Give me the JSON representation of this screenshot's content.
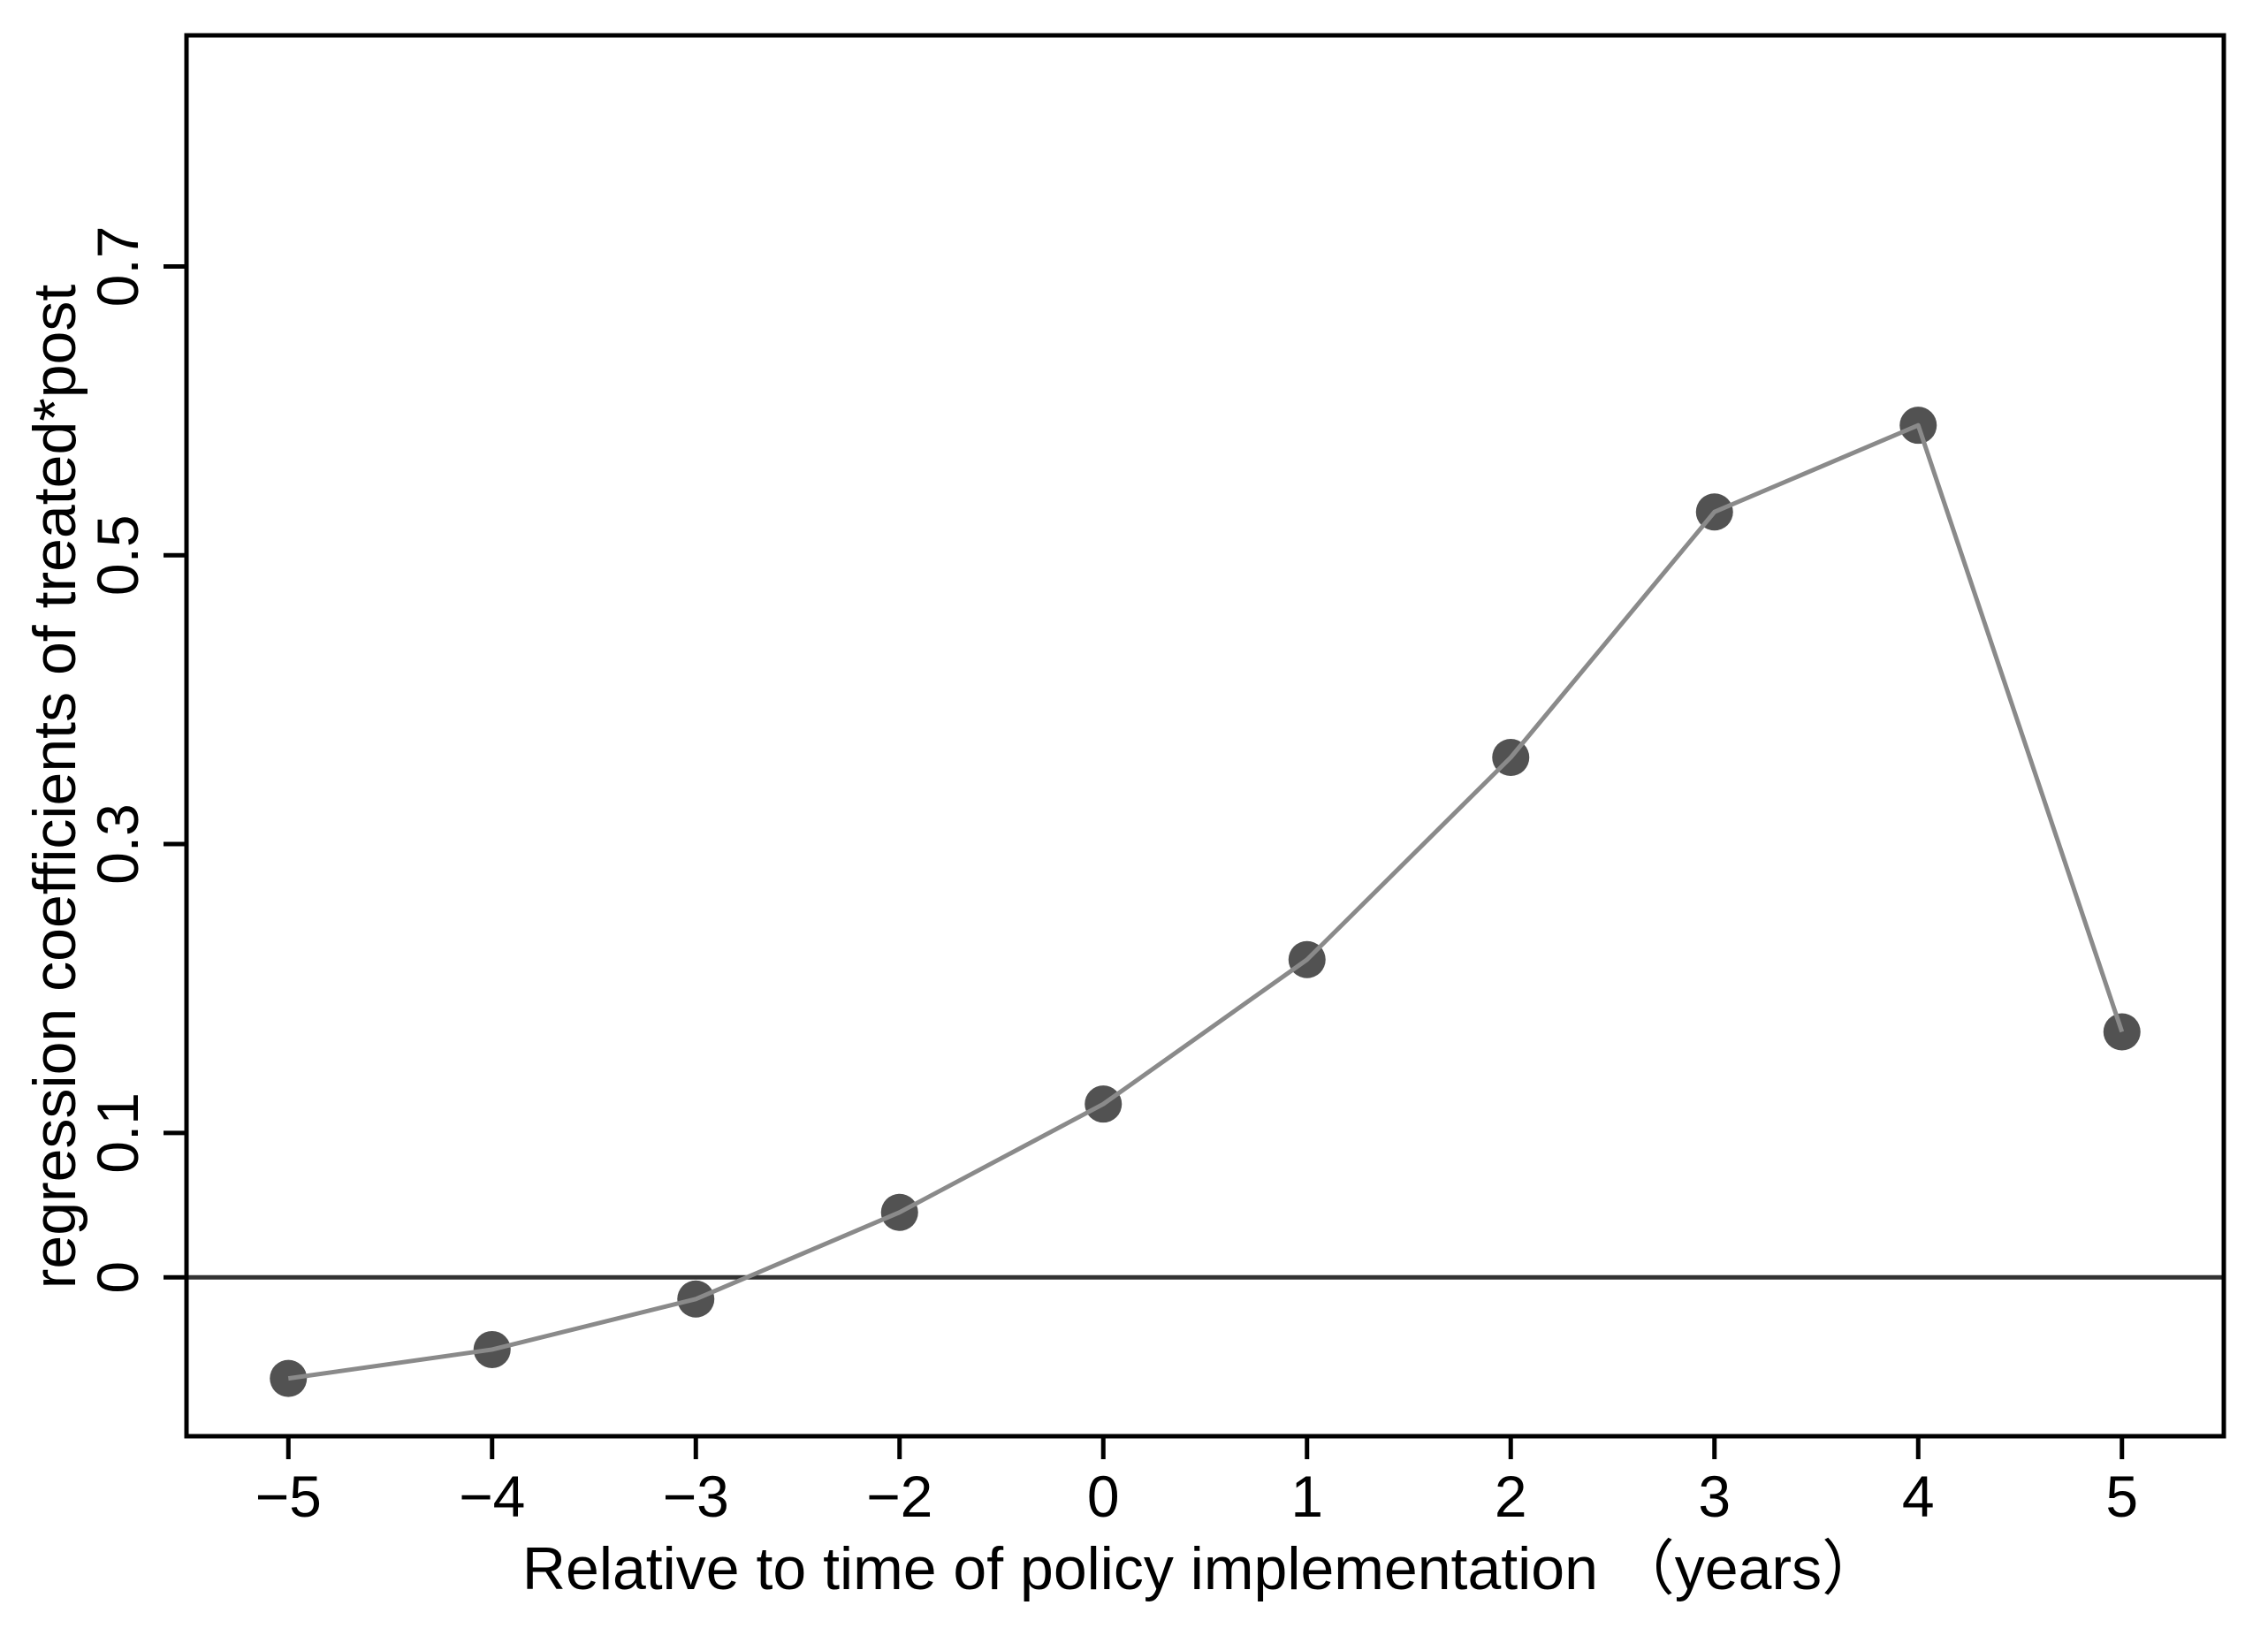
{
  "figure": {
    "background": "#ffffff"
  },
  "chart_data": {
    "type": "line",
    "title": "",
    "xlabel": "Relative to time of policy implementation （years）",
    "ylabel": "regression coefficients of treated*post",
    "categories": [
      "−5",
      "−4",
      "−3",
      "−2",
      "0",
      "1",
      "2",
      "3",
      "4",
      "5"
    ],
    "values": [
      -0.07,
      -0.05,
      -0.015,
      0.045,
      0.12,
      0.22,
      0.36,
      0.53,
      0.59,
      0.17
    ],
    "x_note": "categorical, equally spaced; -1 is omitted between -2 and 0",
    "yticks": {
      "values": [
        0,
        0.1,
        0.3,
        0.5,
        0.7
      ],
      "labels": [
        "0",
        "0.1",
        "0.3",
        "0.5",
        "0.7"
      ]
    },
    "ylim": [
      -0.11,
      0.86
    ],
    "zero_line": 0,
    "grid": false,
    "legend": "none",
    "marker": "circle",
    "colors": {
      "line": "#8a8a8a",
      "marker": "#525252",
      "zero_line": "#333333",
      "frame": "#000000",
      "text": "#000000",
      "background": "#ffffff"
    }
  }
}
